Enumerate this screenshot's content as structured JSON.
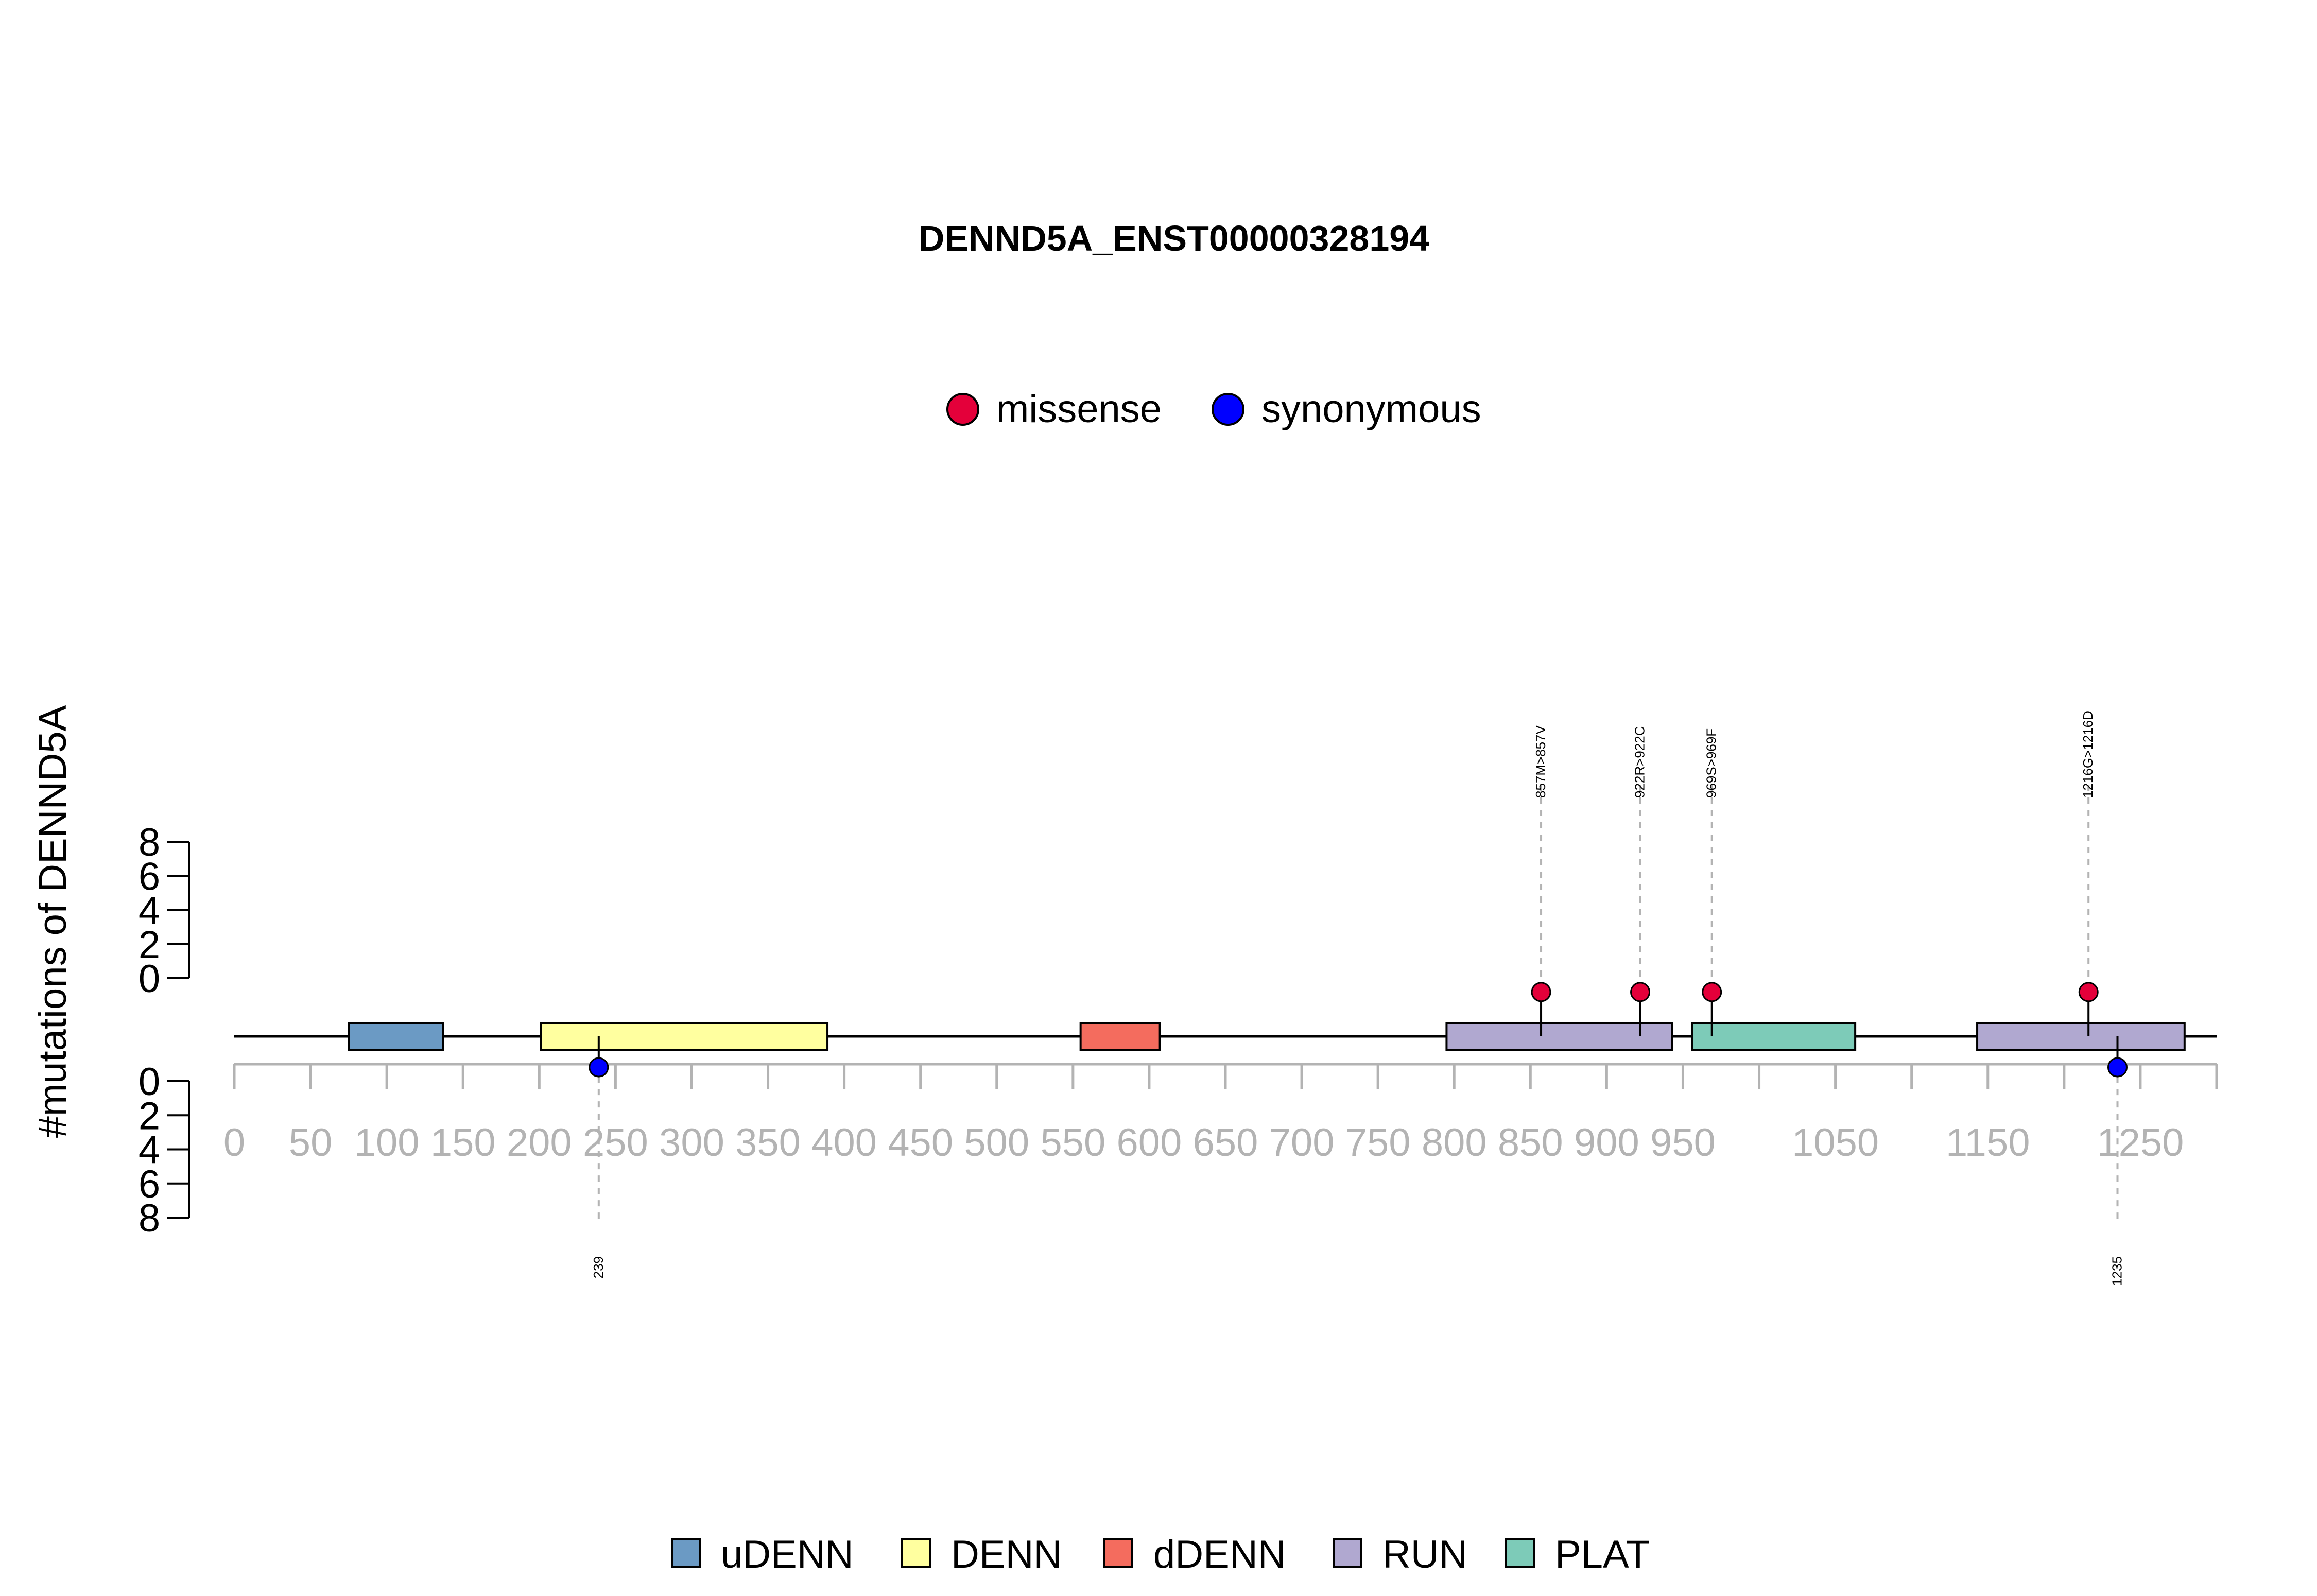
{
  "chart_data": {
    "type": "lollipop",
    "title": "DENND5A_ENST00000328194",
    "ylabel": "#mutations of DENND5A",
    "xlim": [
      0,
      1300
    ],
    "ylim": [
      0,
      8
    ],
    "x_ticks_major": [
      0,
      50,
      100,
      150,
      200,
      250,
      300,
      350,
      400,
      450,
      500,
      550,
      600,
      650,
      700,
      750,
      800,
      850,
      900,
      950,
      1050,
      1150,
      1250
    ],
    "y_ticks_top": [
      "8",
      "6",
      "4",
      "2",
      "0"
    ],
    "y_ticks_bottom": [
      "0",
      "2",
      "4",
      "6",
      "8"
    ],
    "mutation_legend": [
      {
        "label": "missense",
        "color": "#e4003a"
      },
      {
        "label": "synonymous",
        "color": "#0000ff"
      }
    ],
    "domains": [
      {
        "name": "uDENN",
        "start": 75,
        "end": 137,
        "color": "#6b9ac4"
      },
      {
        "name": "DENN",
        "start": 201,
        "end": 389,
        "color": "#ffff9f"
      },
      {
        "name": "dDENN",
        "start": 555,
        "end": 607,
        "color": "#f46c5e"
      },
      {
        "name": "RUN",
        "start": 795,
        "end": 943,
        "color": "#b0a8d0"
      },
      {
        "name": "PLAT",
        "start": 956,
        "end": 1063,
        "color": "#7dcbb8"
      },
      {
        "name": "RUN",
        "start": 1143,
        "end": 1279,
        "color": "#b0a8d0"
      }
    ],
    "domain_legend": [
      {
        "label": "uDENN",
        "color": "#6b9ac4"
      },
      {
        "label": "DENN",
        "color": "#ffff9f"
      },
      {
        "label": "dDENN",
        "color": "#f46c5e"
      },
      {
        "label": "RUN",
        "color": "#b0a8d0"
      },
      {
        "label": "PLAT",
        "color": "#7dcbb8"
      }
    ],
    "mutations": [
      {
        "position": 857,
        "count": 1,
        "type": "missense",
        "side": "top",
        "label": "857M>857V"
      },
      {
        "position": 922,
        "count": 1,
        "type": "missense",
        "side": "top",
        "label": "922R>922C"
      },
      {
        "position": 969,
        "count": 1,
        "type": "missense",
        "side": "top",
        "label": "969S>969F"
      },
      {
        "position": 1216,
        "count": 1,
        "type": "missense",
        "side": "top",
        "label": "1216G>1216D"
      },
      {
        "position": 239,
        "count": 1,
        "type": "synonymous",
        "side": "bottom",
        "label": "239"
      },
      {
        "position": 1235,
        "count": 1,
        "type": "synonymous",
        "side": "bottom",
        "label": "1235"
      }
    ]
  }
}
